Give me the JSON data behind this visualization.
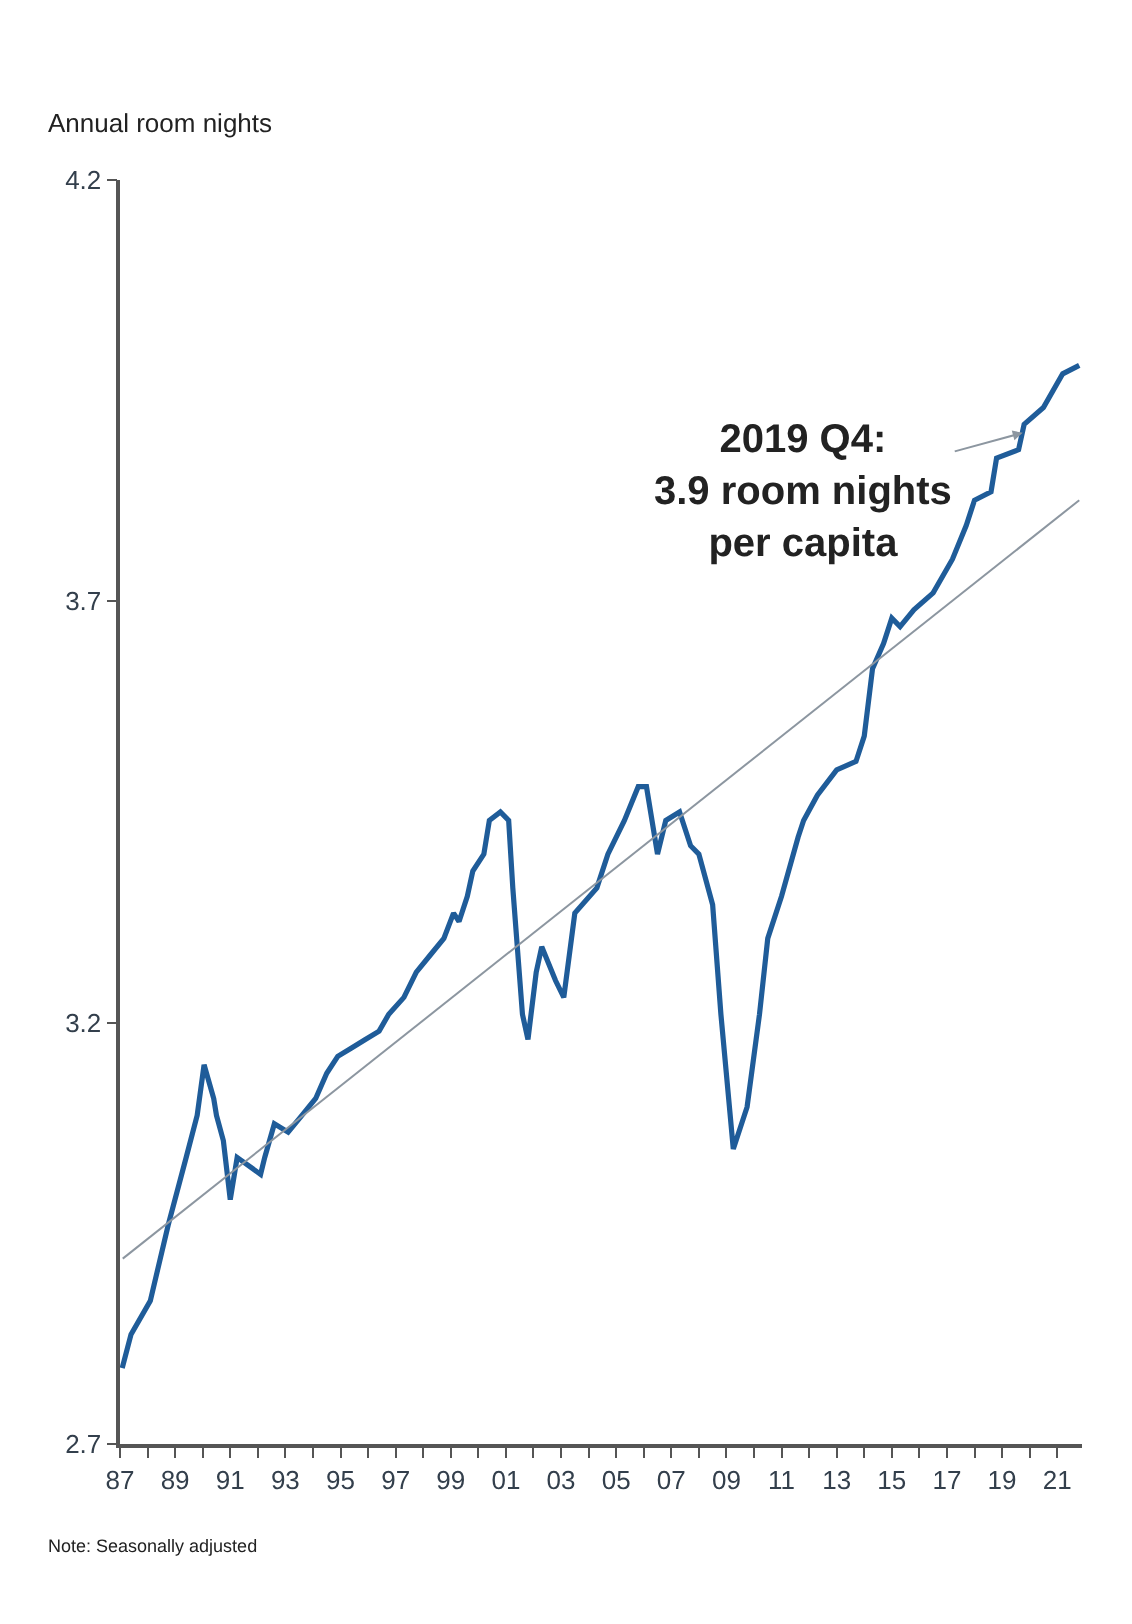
{
  "chart_data": {
    "type": "line",
    "ylabel": "Annual room nights",
    "xlim": [
      1987,
      2021.9
    ],
    "xticks": [
      {
        "value": 1987,
        "label": "87"
      },
      {
        "value": 1988,
        "label": null
      },
      {
        "value": 1989,
        "label": "89"
      },
      {
        "value": 1990,
        "label": null
      },
      {
        "value": 1991,
        "label": "91"
      },
      {
        "value": 1992,
        "label": null
      },
      {
        "value": 1993,
        "label": "93"
      },
      {
        "value": 1994,
        "label": null
      },
      {
        "value": 1995,
        "label": "95"
      },
      {
        "value": 1996,
        "label": null
      },
      {
        "value": 1997,
        "label": "97"
      },
      {
        "value": 1998,
        "label": null
      },
      {
        "value": 1999,
        "label": "99"
      },
      {
        "value": 2000,
        "label": null
      },
      {
        "value": 2001,
        "label": "01"
      },
      {
        "value": 2002,
        "label": null
      },
      {
        "value": 2003,
        "label": "03"
      },
      {
        "value": 2004,
        "label": null
      },
      {
        "value": 2005,
        "label": "05"
      },
      {
        "value": 2006,
        "label": null
      },
      {
        "value": 2007,
        "label": "07"
      },
      {
        "value": 2008,
        "label": null
      },
      {
        "value": 2009,
        "label": "09"
      },
      {
        "value": 2010,
        "label": null
      },
      {
        "value": 2011,
        "label": "11"
      },
      {
        "value": 2012,
        "label": null
      },
      {
        "value": 2013,
        "label": "13"
      },
      {
        "value": 2014,
        "label": null
      },
      {
        "value": 2015,
        "label": "15"
      },
      {
        "value": 2016,
        "label": null
      },
      {
        "value": 2017,
        "label": "17"
      },
      {
        "value": 2018,
        "label": null
      },
      {
        "value": 2019,
        "label": "19"
      },
      {
        "value": 2020,
        "label": null
      },
      {
        "value": 2021,
        "label": "21"
      }
    ],
    "ylim": [
      2.7,
      4.2
    ],
    "yticks": [
      2.7,
      3.2,
      3.7,
      4.2
    ],
    "marker": "none",
    "series": [
      {
        "color": "#1f5c99",
        "line_style": "solid",
        "x": [
          1987.08,
          1987.4,
          1988.1,
          1988.75,
          1989.4,
          1989.8,
          1990.05,
          1990.4,
          1990.5,
          1990.75,
          1991.0,
          1991.25,
          1992.1,
          1992.25,
          1992.6,
          1993.1,
          1993.6,
          1994.1,
          1994.5,
          1994.9,
          1995.4,
          1995.9,
          1996.4,
          1996.75,
          1997.3,
          1997.75,
          1998.25,
          1998.75,
          1999.1,
          1999.3,
          1999.6,
          1999.8,
          2000.2,
          2000.4,
          2000.8,
          2001.1,
          2001.25,
          2001.6,
          2001.8,
          2002.1,
          2002.3,
          2002.8,
          2003.1,
          2003.5,
          2004.3,
          2004.7,
          2005.3,
          2005.8,
          2006.1,
          2006.5,
          2006.8,
          2007.3,
          2007.7,
          2008.0,
          2008.5,
          2008.8,
          2009.25,
          2009.75,
          2010.2,
          2010.5,
          2011.0,
          2011.6,
          2011.8,
          2012.3,
          2013.0,
          2013.7,
          2014.0,
          2014.3,
          2014.7,
          2015.0,
          2015.3,
          2015.8,
          2016.5,
          2017.2,
          2017.7,
          2018.0,
          2018.6,
          2018.8,
          2019.6,
          2019.8,
          2020.5,
          2021.2,
          2021.8
        ],
        "values": [
          2.79,
          2.83,
          2.87,
          2.96,
          3.04,
          3.09,
          3.15,
          3.11,
          3.09,
          3.06,
          2.99,
          3.04,
          3.02,
          3.04,
          3.08,
          3.07,
          3.09,
          3.11,
          3.14,
          3.16,
          3.17,
          3.18,
          3.19,
          3.21,
          3.23,
          3.26,
          3.28,
          3.3,
          3.33,
          3.32,
          3.35,
          3.38,
          3.4,
          3.44,
          3.45,
          3.44,
          3.36,
          3.21,
          3.18,
          3.26,
          3.29,
          3.25,
          3.23,
          3.33,
          3.36,
          3.4,
          3.44,
          3.48,
          3.48,
          3.4,
          3.44,
          3.45,
          3.41,
          3.4,
          3.34,
          3.21,
          3.05,
          3.1,
          3.21,
          3.3,
          3.35,
          3.42,
          3.44,
          3.47,
          3.5,
          3.51,
          3.54,
          3.62,
          3.65,
          3.68,
          3.67,
          3.69,
          3.71,
          3.75,
          3.79,
          3.82,
          3.83,
          3.87,
          3.88,
          3.91,
          3.93,
          3.97,
          3.98
        ]
      },
      {
        "type": "line",
        "color": "#8c96a0",
        "line_style": "solid",
        "x": [
          1987.1,
          2021.8
        ],
        "values": [
          2.92,
          3.82
        ]
      }
    ],
    "annotations": [
      {
        "text": "2019 Q4:\n3.9 room nights\nper capita",
        "x": 2019.75,
        "y": 3.9
      },
      "Note: Seasonally adjusted"
    ]
  }
}
